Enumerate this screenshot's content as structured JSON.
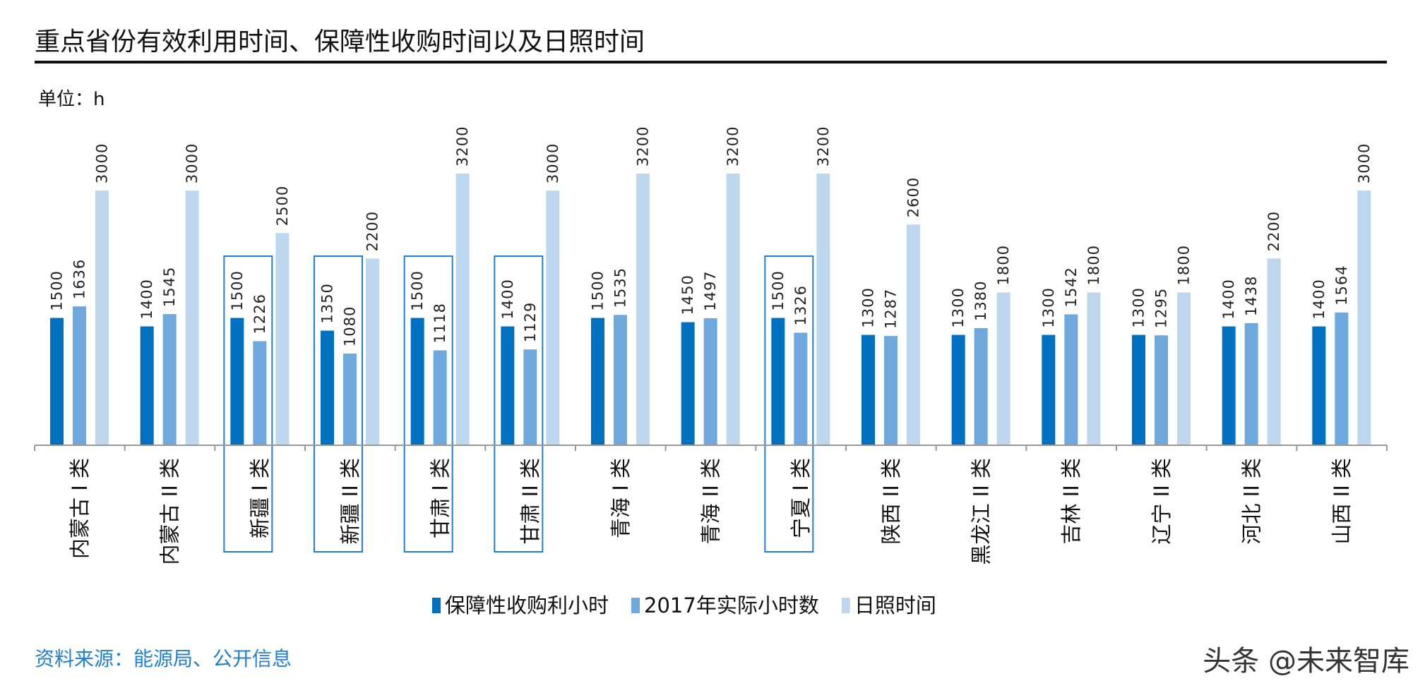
{
  "title": "重点省份有效利用时间、保障性收购时间以及日照时间",
  "unit": "单位：h",
  "source": "资料来源：能源局、公开信息",
  "watermark": "头条 @未来智库",
  "chart_data": {
    "type": "bar",
    "title": "重点省份有效利用时间、保障性收购时间以及日照时间",
    "ylabel": "单位：h",
    "ylim": [
      0,
      3200
    ],
    "grid": false,
    "legend_position": "bottom",
    "categories": [
      "内蒙古 I 类",
      "内蒙古 II 类",
      "新疆 I 类",
      "新疆 II 类",
      "甘肃 I 类",
      "甘肃 II 类",
      "青海 I 类",
      "青海 II 类",
      "宁夏 I 类",
      "陕西 II 类",
      "黑龙江 II 类",
      "吉林 II 类",
      "辽宁 II 类",
      "河北 II 类",
      "山西 II 类"
    ],
    "highlighted_categories": [
      "新疆 I 类",
      "新疆 II 类",
      "甘肃 I 类",
      "甘肃 II 类",
      "宁夏 I 类"
    ],
    "highlight_color": "#1f7fd0",
    "series": [
      {
        "name": "保障性收购利小时",
        "color": "#0070c0",
        "values": [
          1500,
          1400,
          1500,
          1350,
          1500,
          1400,
          1500,
          1450,
          1500,
          1300,
          1300,
          1300,
          1300,
          1400,
          1400
        ]
      },
      {
        "name": "2017年实际小时数",
        "color": "#6fa8dc",
        "values": [
          1636,
          1545,
          1226,
          1080,
          1118,
          1129,
          1535,
          1497,
          1326,
          1287,
          1380,
          1542,
          1295,
          1438,
          1564
        ]
      },
      {
        "name": "日照时间",
        "color": "#bdd7ee",
        "values": [
          3000,
          3000,
          2500,
          2200,
          3200,
          3000,
          3200,
          3200,
          3200,
          2600,
          1800,
          1800,
          1800,
          2200,
          3000
        ]
      }
    ]
  }
}
